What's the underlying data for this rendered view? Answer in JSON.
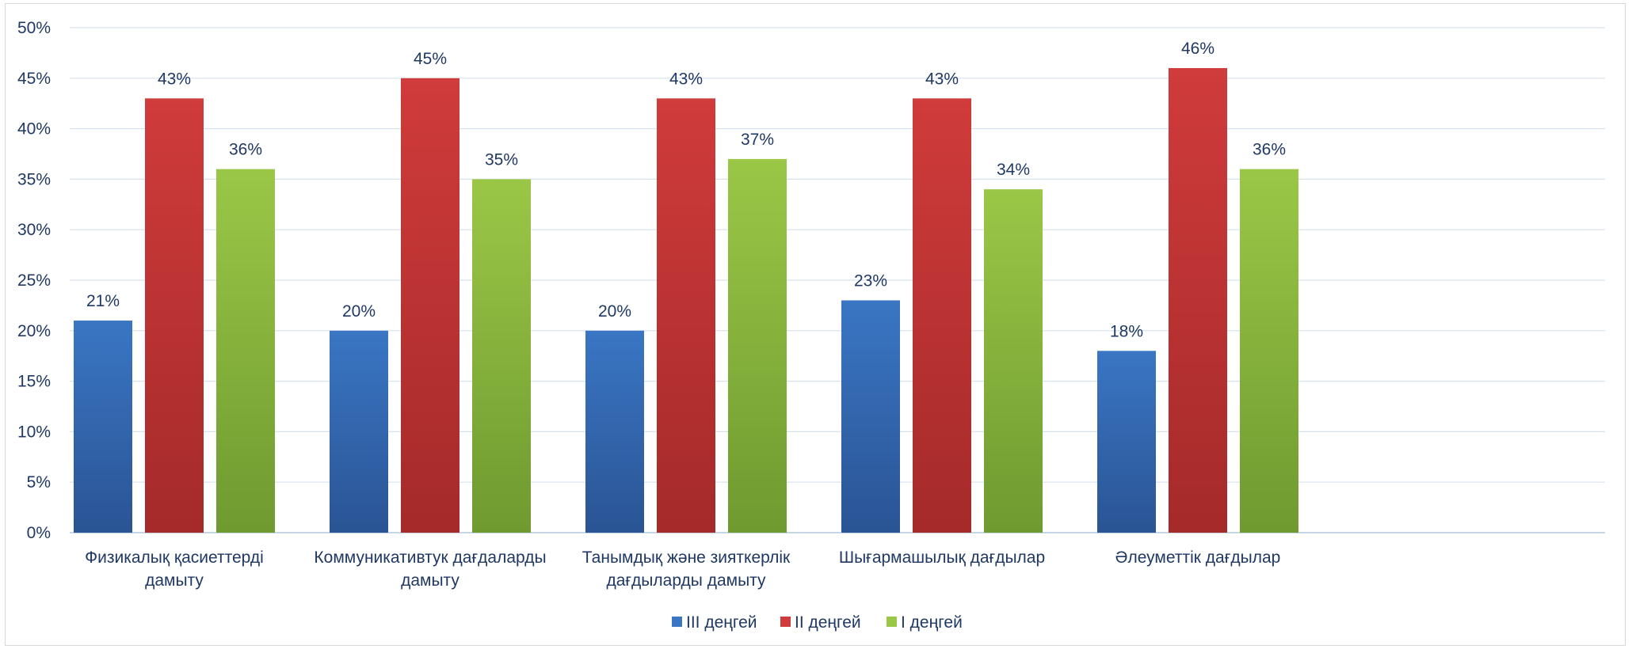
{
  "chart_data": {
    "type": "bar",
    "categories": [
      [
        "Физикалық қасиеттерді",
        "дамыту"
      ],
      [
        "Коммуникативтук дағдаларды",
        "дамыту"
      ],
      [
        "Танымдық және зияткерлік",
        "дағдыларды дамыту"
      ],
      [
        "Шығармашылық дағдылар"
      ],
      [
        "Әлеуметтік дағдылар"
      ]
    ],
    "series": [
      {
        "name": "III деңгей",
        "values": [
          21,
          20,
          20,
          23,
          18
        ],
        "color": "#3a76c4",
        "color_dark": "#2a5494"
      },
      {
        "name": "II деңгей",
        "values": [
          43,
          45,
          43,
          43,
          46
        ],
        "color": "#d03b3b",
        "color_dark": "#a52a2a"
      },
      {
        "name": "I деңгей",
        "values": [
          36,
          35,
          37,
          34,
          36
        ],
        "color": "#9bc747",
        "color_dark": "#6e9a30"
      }
    ],
    "value_suffix": "%",
    "ylim": [
      0,
      50
    ],
    "yticks": [
      0,
      5,
      10,
      15,
      20,
      25,
      30,
      35,
      40,
      45,
      50
    ],
    "grid": true,
    "legend_position": "bottom"
  }
}
